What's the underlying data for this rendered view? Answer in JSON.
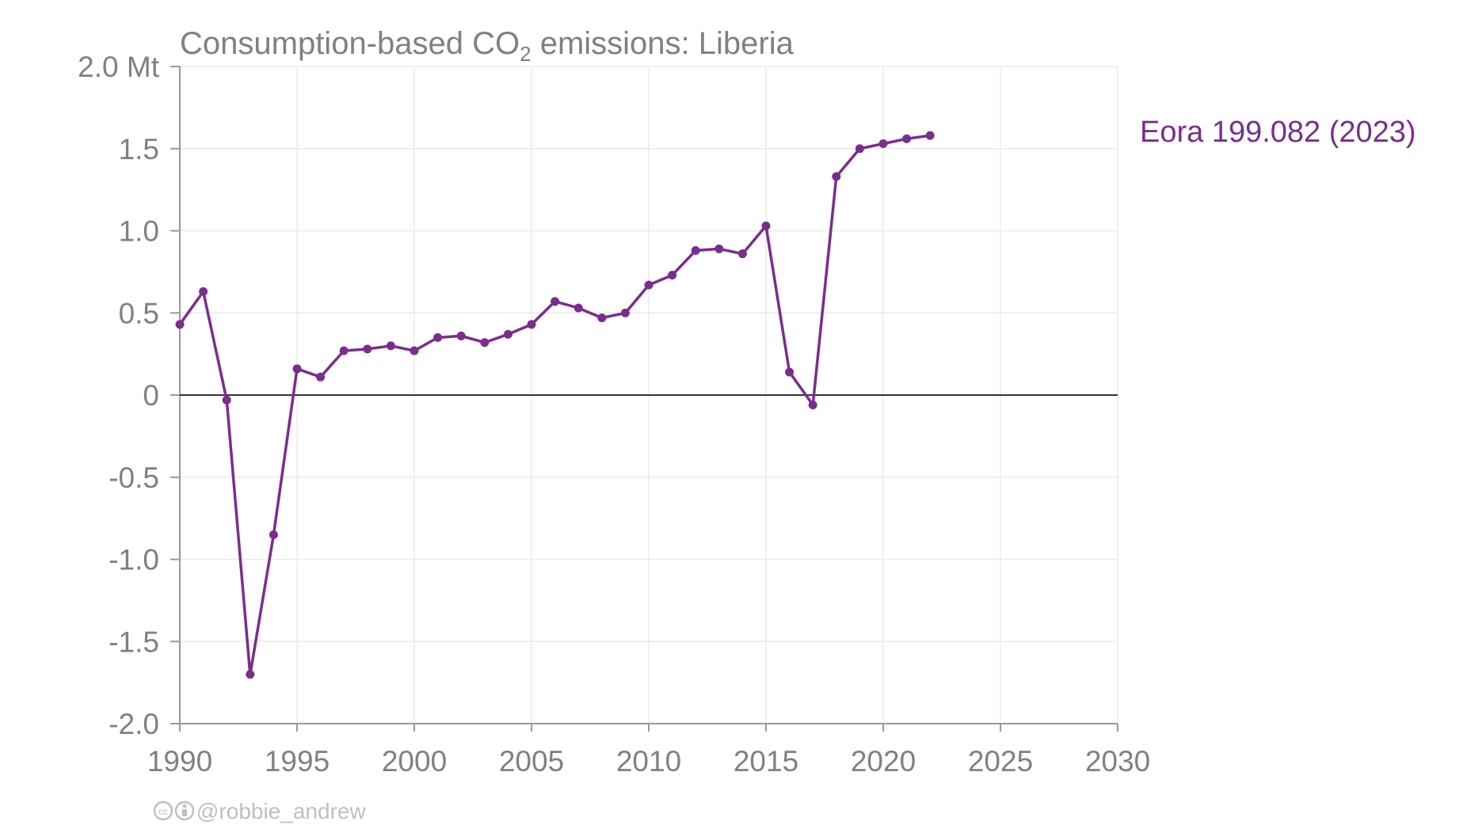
{
  "chart_data": {
    "type": "line",
    "title_prefix": "Consumption-based CO",
    "title_sub": "2",
    "title_suffix": " emissions: Liberia",
    "y_unit": "Mt",
    "xlim": [
      1990,
      2030
    ],
    "ylim": [
      -2.0,
      2.0
    ],
    "x_ticks": [
      1990,
      1995,
      2000,
      2005,
      2010,
      2015,
      2020,
      2025,
      2030
    ],
    "x_tick_labels": [
      "1990",
      "1995",
      "2000",
      "2005",
      "2010",
      "2015",
      "2020",
      "2025",
      "2030"
    ],
    "y_ticks": [
      2.0,
      1.5,
      1.0,
      0.5,
      0,
      -0.5,
      -1.0,
      -1.5,
      -2.0
    ],
    "y_tick_labels": [
      "2.0 Mt",
      "1.5",
      "1.0",
      "0.5",
      "0",
      "-0.5",
      "-1.0",
      "-1.5",
      "-2.0"
    ],
    "grid": true,
    "legend_placement": "right",
    "series": [
      {
        "name": "Eora 199.082 (2023)",
        "color": "#7b2d8e",
        "x": [
          1990,
          1991,
          1992,
          1993,
          1994,
          1995,
          1996,
          1997,
          1998,
          1999,
          2000,
          2001,
          2002,
          2003,
          2004,
          2005,
          2006,
          2007,
          2008,
          2009,
          2010,
          2011,
          2012,
          2013,
          2014,
          2015,
          2016,
          2017,
          2018,
          2019,
          2020,
          2021,
          2022
        ],
        "y": [
          0.43,
          0.63,
          -0.03,
          -1.7,
          -0.85,
          0.16,
          0.11,
          0.27,
          0.28,
          0.3,
          0.27,
          0.35,
          0.36,
          0.32,
          0.37,
          0.43,
          0.57,
          0.53,
          0.47,
          0.5,
          0.67,
          0.73,
          0.88,
          0.89,
          0.86,
          1.03,
          0.14,
          -0.06,
          1.33,
          1.5,
          1.53,
          1.56,
          1.58
        ]
      }
    ]
  },
  "credit": {
    "icons": [
      "cc-icon",
      "by-icon"
    ],
    "handle": "@robbie_andrew"
  }
}
